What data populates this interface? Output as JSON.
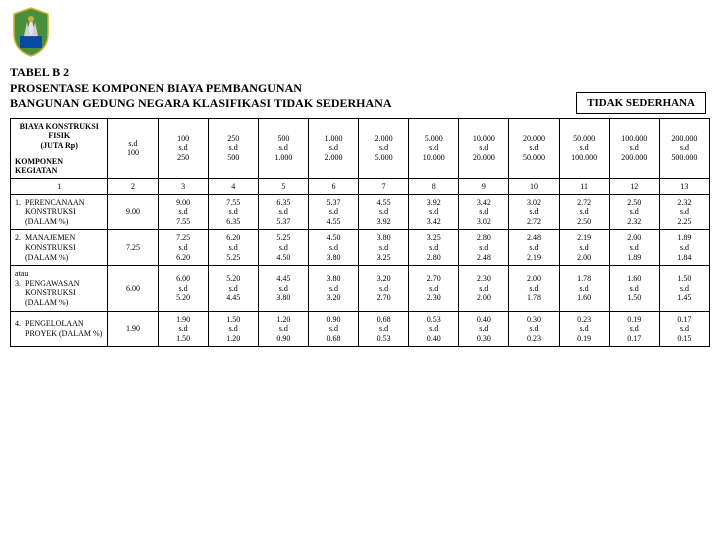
{
  "title": {
    "line1": "TABEL B 2",
    "line2": "PROSENTASE KOMPONEN BIAYA PEMBANGUNAN",
    "line3": "BANGUNAN GEDUNG NEGARA KLASIFIKASI TIDAK SEDERHANA"
  },
  "badge": "TIDAK SEDERHANA",
  "header": {
    "corner": "BIAYA KONSTRUKSI\nFISIK\n(JUTA Rp)",
    "komponen": "KOMPONEN\nKEGIATAN",
    "cols": [
      "s.d\n100",
      "100\ns.d\n250",
      "250\ns.d\n500",
      "500\ns.d\n1.000",
      "1.000\ns.d\n2.000",
      "2.000\ns.d\n5.000",
      "5.000\ns.d\n10.000",
      "10.000\ns.d\n20.000",
      "20.000\ns.d\n50.000",
      "50.000\ns.d\n100.000",
      "100.000\ns.d\n200.000",
      "200.000\ns.d\n500.000"
    ]
  },
  "numrow": [
    "1",
    "2",
    "3",
    "4",
    "5",
    "6",
    "7",
    "8",
    "9",
    "10",
    "11",
    "12",
    "13"
  ],
  "rows": [
    {
      "num": "1.",
      "label": "PERENCANAAN KONSTRUKSI (DALAM %)",
      "vals": [
        "9.00",
        "9.00\ns.d\n7.55",
        "7.55\ns.d\n6.35",
        "6.35\ns.d\n5.37",
        "5.37\ns.d\n4.55",
        "4.55\ns.d\n3.92",
        "3.92\ns.d\n3.42",
        "3.42\ns.d\n3.02",
        "3.02\ns.d\n2.72",
        "2.72\ns.d\n2.50",
        "2.50\ns.d\n2.32",
        "2.32\ns.d\n2.25"
      ]
    },
    {
      "num": "2.",
      "label": "MANAJEMEN KONSTRUKSI (DALAM %)",
      "vals": [
        "7.25",
        "7.25\ns.d\n6.20",
        "6.20\ns.d\n5.25",
        "5.25\ns.d\n4.50",
        "4.50\ns.d\n3.80",
        "3.80\ns.d\n3.25",
        "3.25\ns.d\n2.80",
        "2.80\ns.d\n2.48",
        "2.48\ns.d\n2.19",
        "2.19\ns.d\n2.00",
        "2.00\ns.d\n1.89",
        "1.89\ns.d\n1.84"
      ]
    },
    {
      "num": "3.",
      "prefix": "atau",
      "label": "PENGAWASAN KONSTRUKSI (DALAM %)",
      "vals": [
        "6.00",
        "6.00\ns.d\n5.20",
        "5.20\ns.d\n4.45",
        "4.45\ns.d\n3.80",
        "3.80\ns.d\n3.20",
        "3.20\ns.d\n2.70",
        "2.70\ns.d\n2.30",
        "2.30\ns.d\n2.00",
        "2.00\ns.d\n1.78",
        "1.78\ns.d\n1.60",
        "1.60\ns.d\n1.50",
        "1.50\ns.d\n1.45"
      ]
    },
    {
      "num": "4.",
      "label": "PENGELOLAAN PROYEK (DALAM %)",
      "vals": [
        "1.90",
        "1.90\ns.d\n1.50",
        "1.50\ns.d\n1.20",
        "1.20\ns.d\n0.90",
        "0.90\ns.d\n0.68",
        "0.68\ns.d\n0.53",
        "0.53\ns.d\n0.40",
        "0.40\ns.d\n0.30",
        "0.30\ns.d\n0.23",
        "0.23\ns.d\n0.19",
        "0.19\ns.d\n0.17",
        "0.17\ns.d\n0.15"
      ]
    }
  ]
}
